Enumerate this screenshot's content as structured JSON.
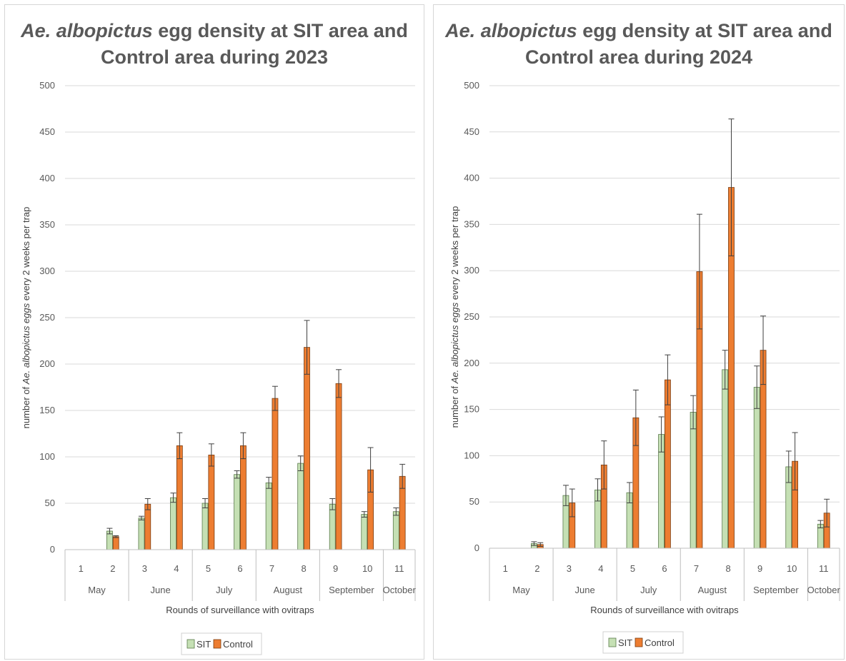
{
  "chart_data": [
    {
      "type": "bar",
      "title_italic": "Ae. albopictus",
      "title_rest_line1": " egg density at SIT area and",
      "title_line2": "Control area during 2023",
      "ylabel_pre": "number of ",
      "ylabel_italic": "Ae. albopictus  eggs",
      "ylabel_post": " every 2  weeks per trap",
      "xlabel": "Rounds of surveillance with ovitraps",
      "ylim": [
        0,
        500
      ],
      "yticks": [
        0,
        50,
        100,
        150,
        200,
        250,
        300,
        350,
        400,
        450,
        500
      ],
      "categories": [
        "1",
        "2",
        "3",
        "4",
        "5",
        "6",
        "7",
        "8",
        "9",
        "10",
        "11"
      ],
      "months": [
        {
          "label": "May",
          "rounds": 2
        },
        {
          "label": "June",
          "rounds": 2
        },
        {
          "label": "July",
          "rounds": 2
        },
        {
          "label": "August",
          "rounds": 2
        },
        {
          "label": "September",
          "rounds": 2
        },
        {
          "label": "October",
          "rounds": 1
        }
      ],
      "series": [
        {
          "name": "SIT",
          "color": "#c5e0b4",
          "edge": "#5a7a4a",
          "values": [
            0,
            20,
            34,
            56,
            50,
            81,
            72,
            93,
            49,
            38,
            41
          ],
          "errors": [
            0,
            3,
            2,
            5,
            5,
            4,
            6,
            8,
            6,
            3,
            4
          ]
        },
        {
          "name": "Control",
          "color": "#ed7d31",
          "edge": "#7a3c10",
          "values": [
            0,
            14,
            49,
            112,
            102,
            112,
            163,
            218,
            179,
            86,
            79
          ],
          "errors": [
            0,
            1,
            6,
            14,
            12,
            14,
            13,
            29,
            15,
            24,
            13
          ]
        }
      ],
      "legend_position": "bottom-center",
      "grid": true
    },
    {
      "type": "bar",
      "title_italic": "Ae. albopictus",
      "title_rest_line1": " egg density at SIT area and",
      "title_line2": "Control area during 2024",
      "ylabel_pre": "number of ",
      "ylabel_italic": "Ae. albopictus  eggs",
      "ylabel_post": " every 2  weeks per trap",
      "xlabel": "Rounds of surveillance with ovitraps",
      "ylim": [
        0,
        500
      ],
      "yticks": [
        0,
        50,
        100,
        150,
        200,
        250,
        300,
        350,
        400,
        450,
        500
      ],
      "categories": [
        "1",
        "2",
        "3",
        "4",
        "5",
        "6",
        "7",
        "8",
        "9",
        "10",
        "11"
      ],
      "months": [
        {
          "label": "May",
          "rounds": 2
        },
        {
          "label": "June",
          "rounds": 2
        },
        {
          "label": "July",
          "rounds": 2
        },
        {
          "label": "August",
          "rounds": 2
        },
        {
          "label": "September",
          "rounds": 2
        },
        {
          "label": "October",
          "rounds": 1
        }
      ],
      "series": [
        {
          "name": "SIT",
          "color": "#c5e0b4",
          "edge": "#5a7a4a",
          "values": [
            0,
            5,
            57,
            63,
            60,
            123,
            147,
            193,
            174,
            88,
            26
          ],
          "errors": [
            0,
            2,
            11,
            12,
            11,
            19,
            18,
            21,
            23,
            17,
            4
          ]
        },
        {
          "name": "Control",
          "color": "#ed7d31",
          "edge": "#7a3c10",
          "values": [
            0,
            4,
            49,
            90,
            141,
            182,
            299,
            390,
            214,
            94,
            38
          ],
          "errors": [
            0,
            2,
            15,
            26,
            30,
            27,
            62,
            74,
            37,
            31,
            15
          ]
        }
      ],
      "legend_position": "bottom-center",
      "grid": true
    }
  ]
}
